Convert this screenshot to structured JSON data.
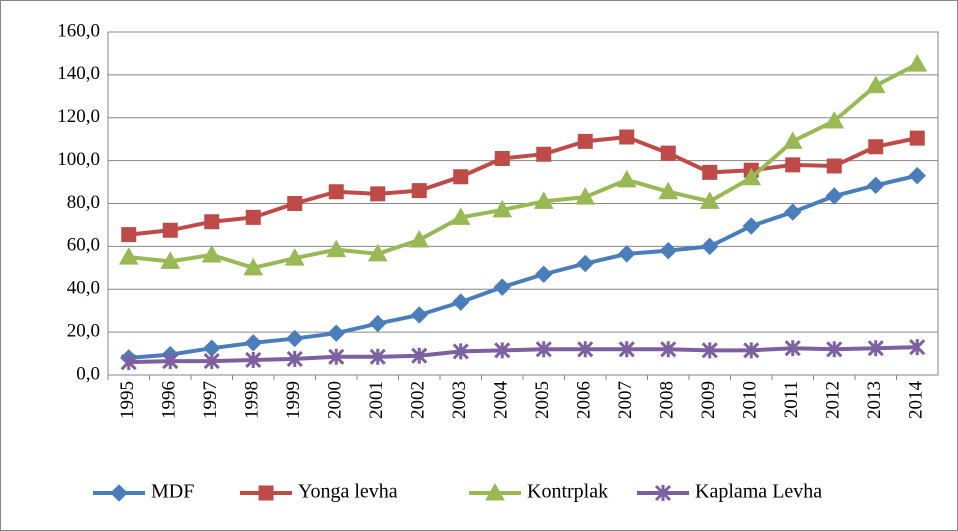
{
  "chart_data": {
    "type": "line",
    "categories": [
      "1995",
      "1996",
      "1997",
      "1998",
      "1999",
      "2000",
      "2001",
      "2002",
      "2003",
      "2004",
      "2005",
      "2006",
      "2007",
      "2008",
      "2009",
      "2010",
      "2011",
      "2012",
      "2013",
      "2014"
    ],
    "series": [
      {
        "name": "MDF",
        "color": "#4a7ebb",
        "marker": "diamond",
        "values": [
          8,
          9.5,
          12.5,
          15,
          17,
          19.5,
          24,
          28,
          34,
          41,
          47,
          52,
          56.5,
          58,
          60,
          69.5,
          76,
          83.5,
          88.5,
          93
        ]
      },
      {
        "name": "Yonga levha",
        "color": "#be4b48",
        "marker": "square",
        "values": [
          65.5,
          67.5,
          71.5,
          73.5,
          80,
          85.5,
          84.5,
          86,
          92.5,
          101,
          103,
          109,
          111,
          103.5,
          94.5,
          95.5,
          98,
          97.5,
          106.5,
          110.5
        ]
      },
      {
        "name": "Kontrplak",
        "color": "#98b954",
        "marker": "triangle",
        "values": [
          55,
          53,
          56,
          50,
          54.5,
          58.5,
          56.5,
          63,
          73.5,
          77,
          81,
          83,
          91,
          85.5,
          81,
          92,
          109,
          118.5,
          135,
          145
        ]
      },
      {
        "name": "Kaplama Levha",
        "color": "#7d60a0",
        "marker": "star",
        "values": [
          6,
          6.5,
          6.5,
          7,
          7.5,
          8.5,
          8.5,
          9,
          11,
          11.5,
          12,
          12,
          12,
          12,
          11.5,
          11.5,
          12.5,
          12,
          12.5,
          13
        ]
      }
    ],
    "ylim": [
      0,
      160
    ],
    "yticks": [
      {
        "value": 0,
        "label": "0,0"
      },
      {
        "value": 20,
        "label": "20,0"
      },
      {
        "value": 40,
        "label": "40,0"
      },
      {
        "value": 60,
        "label": "60,0"
      },
      {
        "value": 80,
        "label": "80,0"
      },
      {
        "value": 100,
        "label": "100,0"
      },
      {
        "value": 120,
        "label": "120,0"
      },
      {
        "value": 140,
        "label": "140,0"
      },
      {
        "value": 160,
        "label": "160,0"
      }
    ],
    "grid": true,
    "legend": "bottom"
  }
}
